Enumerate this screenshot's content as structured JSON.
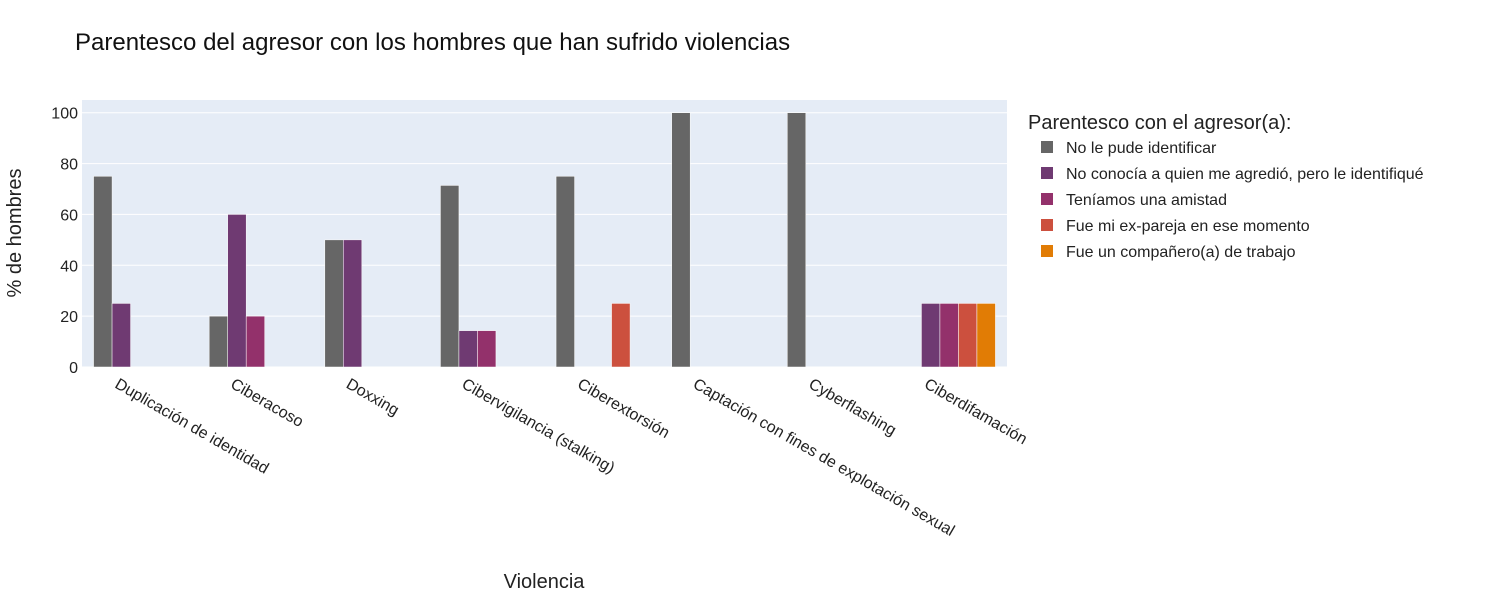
{
  "chart_data": {
    "type": "bar",
    "title": "Parentesco del agresor con los hombres que han sufrido violencias",
    "xlabel": "Violencia",
    "ylabel": "% de hombres",
    "ylim": [
      0,
      105
    ],
    "yticks": [
      0,
      20,
      40,
      60,
      80,
      100
    ],
    "grid": true,
    "legend_title": "Parentesco con el agresor(a):",
    "legend_position": "right",
    "categories": [
      "Duplicación de identidad",
      "Ciberacoso",
      "Doxxing",
      "Cibervigilancia (stalking)",
      "Ciberextorsión",
      "Captación con fines de explotación sexual",
      "Cyberflashing",
      "Ciberdifamación"
    ],
    "series": [
      {
        "name": "No le pude identificar",
        "color": "#666666",
        "values": [
          75,
          20,
          50,
          71.4,
          75,
          100,
          100,
          0
        ]
      },
      {
        "name": "No conocía a quien me agredió, pero le identifiqué",
        "color": "#6f3a72",
        "values": [
          25,
          60,
          50,
          14.3,
          0,
          0,
          0,
          25
        ]
      },
      {
        "name": "Teníamos una amistad",
        "color": "#93316b",
        "values": [
          0,
          20,
          0,
          14.3,
          0,
          0,
          0,
          25
        ]
      },
      {
        "name": "Fue mi ex-pareja en ese momento",
        "color": "#cc503e",
        "values": [
          0,
          0,
          0,
          0,
          25,
          0,
          0,
          25
        ]
      },
      {
        "name": "Fue un compañero(a) de trabajo",
        "color": "#e17c05",
        "values": [
          0,
          0,
          0,
          0,
          0,
          0,
          0,
          25
        ]
      }
    ]
  }
}
